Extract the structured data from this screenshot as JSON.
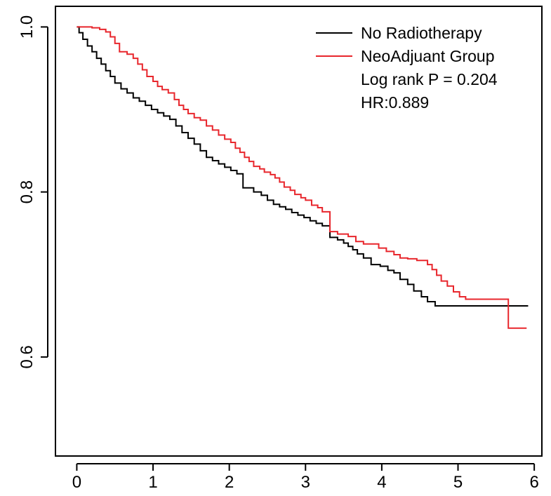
{
  "chart_data": {
    "type": "line",
    "step": true,
    "xlim": [
      -0.28,
      6.1
    ],
    "ylim": [
      0.48,
      1.025
    ],
    "x_ticks": [
      "0",
      "1",
      "2",
      "3",
      "4",
      "5",
      "6"
    ],
    "y_ticks": [
      "0.6",
      "0.8",
      "1.0"
    ],
    "xlabel": "",
    "ylabel": "",
    "title": "",
    "grid": false,
    "legend_position": "top-right",
    "series": [
      {
        "name": "No Radiotherapy",
        "color": "#000000",
        "points": [
          [
            0,
            1.0
          ],
          [
            0.03,
            0.993
          ],
          [
            0.08,
            0.985
          ],
          [
            0.14,
            0.977
          ],
          [
            0.2,
            0.97
          ],
          [
            0.26,
            0.962
          ],
          [
            0.32,
            0.955
          ],
          [
            0.38,
            0.947
          ],
          [
            0.44,
            0.94
          ],
          [
            0.5,
            0.932
          ],
          [
            0.58,
            0.925
          ],
          [
            0.66,
            0.92
          ],
          [
            0.74,
            0.914
          ],
          [
            0.82,
            0.91
          ],
          [
            0.9,
            0.905
          ],
          [
            0.98,
            0.9
          ],
          [
            1.06,
            0.896
          ],
          [
            1.14,
            0.892
          ],
          [
            1.22,
            0.888
          ],
          [
            1.3,
            0.88
          ],
          [
            1.38,
            0.872
          ],
          [
            1.46,
            0.865
          ],
          [
            1.54,
            0.858
          ],
          [
            1.62,
            0.85
          ],
          [
            1.7,
            0.842
          ],
          [
            1.78,
            0.838
          ],
          [
            1.86,
            0.834
          ],
          [
            1.94,
            0.83
          ],
          [
            2.02,
            0.826
          ],
          [
            2.1,
            0.822
          ],
          [
            2.18,
            0.805
          ],
          [
            2.32,
            0.8
          ],
          [
            2.42,
            0.796
          ],
          [
            2.5,
            0.79
          ],
          [
            2.58,
            0.785
          ],
          [
            2.66,
            0.782
          ],
          [
            2.74,
            0.779
          ],
          [
            2.82,
            0.775
          ],
          [
            2.9,
            0.772
          ],
          [
            2.98,
            0.769
          ],
          [
            3.06,
            0.765
          ],
          [
            3.14,
            0.762
          ],
          [
            3.22,
            0.759
          ],
          [
            3.32,
            0.745
          ],
          [
            3.42,
            0.742
          ],
          [
            3.5,
            0.738
          ],
          [
            3.56,
            0.734
          ],
          [
            3.62,
            0.73
          ],
          [
            3.68,
            0.725
          ],
          [
            3.76,
            0.72
          ],
          [
            3.86,
            0.712
          ],
          [
            3.98,
            0.71
          ],
          [
            4.08,
            0.705
          ],
          [
            4.16,
            0.702
          ],
          [
            4.24,
            0.694
          ],
          [
            4.34,
            0.688
          ],
          [
            4.42,
            0.68
          ],
          [
            4.52,
            0.673
          ],
          [
            4.6,
            0.667
          ],
          [
            4.7,
            0.662
          ],
          [
            5.92,
            0.662
          ]
        ]
      },
      {
        "name": "NeoAdjuant Group",
        "color": "#e8262c",
        "points": [
          [
            0,
            1.0
          ],
          [
            0.2,
            0.999
          ],
          [
            0.3,
            0.997
          ],
          [
            0.38,
            0.994
          ],
          [
            0.44,
            0.988
          ],
          [
            0.5,
            0.98
          ],
          [
            0.56,
            0.97
          ],
          [
            0.66,
            0.967
          ],
          [
            0.74,
            0.962
          ],
          [
            0.8,
            0.955
          ],
          [
            0.86,
            0.948
          ],
          [
            0.92,
            0.94
          ],
          [
            1.0,
            0.934
          ],
          [
            1.06,
            0.928
          ],
          [
            1.12,
            0.924
          ],
          [
            1.2,
            0.92
          ],
          [
            1.28,
            0.912
          ],
          [
            1.34,
            0.905
          ],
          [
            1.4,
            0.9
          ],
          [
            1.46,
            0.895
          ],
          [
            1.54,
            0.89
          ],
          [
            1.62,
            0.887
          ],
          [
            1.7,
            0.88
          ],
          [
            1.78,
            0.875
          ],
          [
            1.86,
            0.869
          ],
          [
            1.94,
            0.864
          ],
          [
            2.02,
            0.86
          ],
          [
            2.08,
            0.853
          ],
          [
            2.14,
            0.848
          ],
          [
            2.2,
            0.842
          ],
          [
            2.26,
            0.837
          ],
          [
            2.32,
            0.831
          ],
          [
            2.4,
            0.828
          ],
          [
            2.46,
            0.824
          ],
          [
            2.54,
            0.821
          ],
          [
            2.6,
            0.817
          ],
          [
            2.66,
            0.812
          ],
          [
            2.72,
            0.806
          ],
          [
            2.8,
            0.802
          ],
          [
            2.86,
            0.797
          ],
          [
            2.94,
            0.793
          ],
          [
            3.0,
            0.79
          ],
          [
            3.08,
            0.784
          ],
          [
            3.16,
            0.781
          ],
          [
            3.22,
            0.776
          ],
          [
            3.32,
            0.752
          ],
          [
            3.42,
            0.749
          ],
          [
            3.56,
            0.746
          ],
          [
            3.66,
            0.74
          ],
          [
            3.76,
            0.737
          ],
          [
            3.96,
            0.732
          ],
          [
            4.06,
            0.728
          ],
          [
            4.16,
            0.724
          ],
          [
            4.24,
            0.72
          ],
          [
            4.34,
            0.719
          ],
          [
            4.46,
            0.717
          ],
          [
            4.6,
            0.712
          ],
          [
            4.66,
            0.706
          ],
          [
            4.72,
            0.699
          ],
          [
            4.78,
            0.692
          ],
          [
            4.86,
            0.686
          ],
          [
            4.94,
            0.679
          ],
          [
            5.02,
            0.673
          ],
          [
            5.1,
            0.67
          ],
          [
            5.2,
            0.67
          ],
          [
            5.66,
            0.635
          ],
          [
            5.9,
            0.635
          ]
        ]
      }
    ],
    "legend_entries": [
      {
        "label": "No Radiotherapy",
        "color": "#000000"
      },
      {
        "label": "NeoAdjuant Group",
        "color": "#e8262c"
      }
    ],
    "annotations": [
      "Log rank P = 0.204",
      "HR:0.889"
    ]
  }
}
